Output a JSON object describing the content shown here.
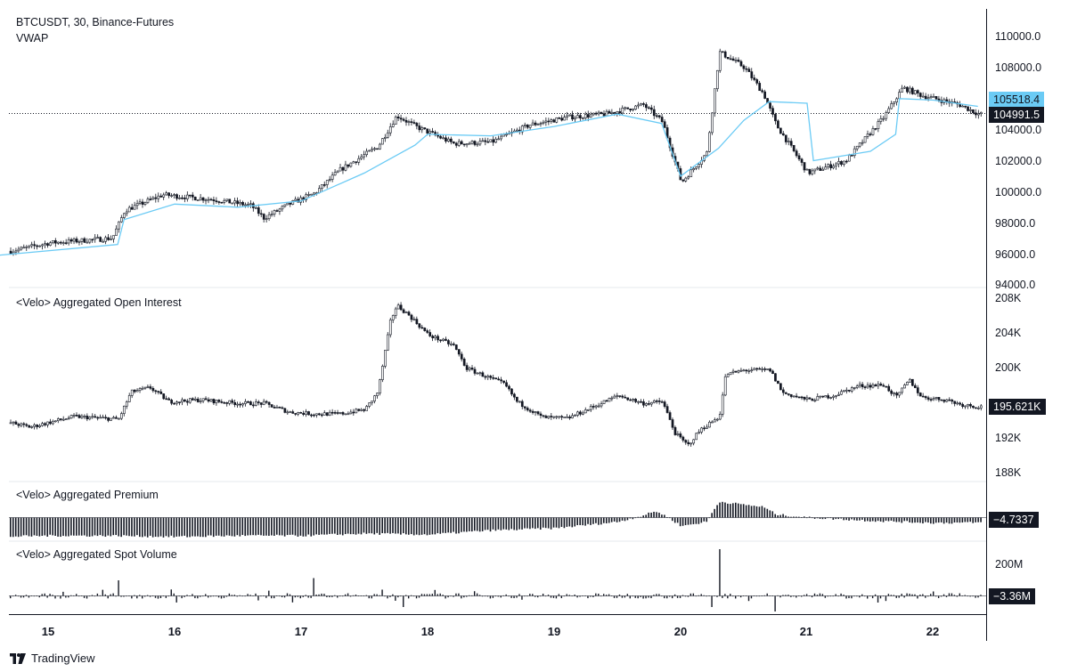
{
  "panes": {
    "price": {
      "title": "BTCUSDT, 30, Binance-Futures",
      "indicator": "VWAP",
      "axis_labels": [
        "110000.0",
        "108000.0",
        "104000.0",
        "102000.0",
        "100000.0",
        "98000.0",
        "96000.0",
        "94000.0"
      ],
      "last_price": "104991.5",
      "vwap_value": "105518.4"
    },
    "open_interest": {
      "title": "<Velo> Aggregated Open Interest",
      "axis_labels": [
        "208K",
        "204K",
        "200K",
        "192K",
        "188K"
      ],
      "last_value": "195.621K"
    },
    "premium": {
      "title": "<Velo> Aggregated Premium",
      "last_value": "−4.7337"
    },
    "spot_volume": {
      "title": "<Velo> Aggregated Spot Volume",
      "axis_labels": [
        "200M"
      ],
      "last_value": "−3.36M"
    }
  },
  "time_axis": [
    "15",
    "16",
    "17",
    "18",
    "19",
    "20",
    "21",
    "22"
  ],
  "brand": "TradingView",
  "colors": {
    "candle": "#131722",
    "vwap": "#6bcbf5",
    "axis_line": "#131722"
  },
  "chart_data": [
    {
      "type": "candlestick",
      "title": "BTCUSDT, 30, Binance-Futures",
      "ylim": [
        94000,
        111000
      ],
      "x": [
        "15",
        "16",
        "17",
        "18",
        "19",
        "20",
        "21",
        "22"
      ],
      "close_path": [
        [
          14.6,
          96000
        ],
        [
          15.0,
          96700
        ],
        [
          15.5,
          97000
        ],
        [
          15.6,
          98800
        ],
        [
          15.9,
          99800
        ],
        [
          16.3,
          99500
        ],
        [
          16.6,
          99100
        ],
        [
          16.7,
          98300
        ],
        [
          16.9,
          99200
        ],
        [
          17.1,
          99900
        ],
        [
          17.3,
          101400
        ],
        [
          17.6,
          102900
        ],
        [
          17.75,
          104900
        ],
        [
          17.9,
          104200
        ],
        [
          18.2,
          103100
        ],
        [
          18.5,
          103200
        ],
        [
          18.8,
          104300
        ],
        [
          19.1,
          104800
        ],
        [
          19.4,
          105000
        ],
        [
          19.7,
          105600
        ],
        [
          19.85,
          104500
        ],
        [
          20.0,
          100600
        ],
        [
          20.2,
          102500
        ],
        [
          20.3,
          109000
        ],
        [
          20.5,
          108000
        ],
        [
          20.65,
          106300
        ],
        [
          20.75,
          104300
        ],
        [
          21.0,
          101200
        ],
        [
          21.3,
          102000
        ],
        [
          21.6,
          104800
        ],
        [
          21.75,
          106700
        ],
        [
          21.9,
          106200
        ],
        [
          22.2,
          105600
        ],
        [
          22.35,
          105000
        ]
      ],
      "vwap_last": 105518.4,
      "last_close": 104991.5
    },
    {
      "type": "candlestick",
      "title": "<Velo> Aggregated Open Interest",
      "ylim": [
        188000,
        208000
      ],
      "x": [
        "15",
        "16",
        "17",
        "18",
        "19",
        "20",
        "21",
        "22"
      ],
      "close_path": [
        [
          14.6,
          194100
        ],
        [
          14.85,
          193300
        ],
        [
          15.2,
          194500
        ],
        [
          15.55,
          194200
        ],
        [
          15.65,
          197300
        ],
        [
          15.8,
          197800
        ],
        [
          15.95,
          196200
        ],
        [
          16.2,
          196400
        ],
        [
          16.5,
          196000
        ],
        [
          16.7,
          196000
        ],
        [
          16.9,
          195000
        ],
        [
          17.1,
          194800
        ],
        [
          17.3,
          194800
        ],
        [
          17.5,
          195300
        ],
        [
          17.6,
          197300
        ],
        [
          17.7,
          205400
        ],
        [
          17.75,
          207200
        ],
        [
          17.85,
          206000
        ],
        [
          18.0,
          203800
        ],
        [
          18.2,
          202600
        ],
        [
          18.3,
          200000
        ],
        [
          18.6,
          198200
        ],
        [
          18.7,
          196200
        ],
        [
          18.9,
          194400
        ],
        [
          19.1,
          194300
        ],
        [
          19.3,
          195600
        ],
        [
          19.5,
          196900
        ],
        [
          19.7,
          196000
        ],
        [
          19.85,
          196200
        ],
        [
          19.95,
          192600
        ],
        [
          20.05,
          191200
        ],
        [
          20.15,
          193000
        ],
        [
          20.3,
          194500
        ],
        [
          20.35,
          199300
        ],
        [
          20.5,
          199800
        ],
        [
          20.7,
          199800
        ],
        [
          20.8,
          197200
        ],
        [
          21.0,
          196400
        ],
        [
          21.2,
          196900
        ],
        [
          21.4,
          198000
        ],
        [
          21.6,
          198100
        ],
        [
          21.7,
          196700
        ],
        [
          21.8,
          198700
        ],
        [
          21.9,
          196700
        ],
        [
          22.1,
          196400
        ],
        [
          22.2,
          195900
        ],
        [
          22.35,
          195621
        ]
      ],
      "last_value": 195621
    },
    {
      "type": "bar",
      "title": "<Velo> Aggregated Premium",
      "x": [
        "15",
        "16",
        "17",
        "18",
        "19",
        "20",
        "21",
        "22"
      ],
      "value_path": [
        [
          14.6,
          -18
        ],
        [
          15.0,
          -17
        ],
        [
          15.5,
          -17
        ],
        [
          16.0,
          -18
        ],
        [
          16.5,
          -17
        ],
        [
          17.0,
          -17
        ],
        [
          17.5,
          -15
        ],
        [
          18.0,
          -16
        ],
        [
          18.5,
          -12
        ],
        [
          19.0,
          -10
        ],
        [
          19.5,
          -4
        ],
        [
          19.7,
          2
        ],
        [
          19.8,
          6
        ],
        [
          19.9,
          0
        ],
        [
          20.0,
          -8
        ],
        [
          20.2,
          -4
        ],
        [
          20.3,
          15
        ],
        [
          20.5,
          12
        ],
        [
          20.65,
          10
        ],
        [
          20.75,
          3
        ],
        [
          21.0,
          0
        ],
        [
          21.5,
          -3
        ],
        [
          22.0,
          -5
        ],
        [
          22.35,
          -4.7337
        ]
      ],
      "last_value": -4.7337
    },
    {
      "type": "bar",
      "title": "<Velo> Aggregated Spot Volume",
      "x": [
        "15",
        "16",
        "17",
        "18",
        "19",
        "20",
        "21",
        "22"
      ],
      "yticks": [
        "200M"
      ],
      "spikes": [
        [
          15.55,
          70
        ],
        [
          17.1,
          80
        ],
        [
          20.3,
          210
        ],
        [
          20.25,
          -50
        ],
        [
          20.75,
          -70
        ],
        [
          17.8,
          -50
        ]
      ],
      "last_value": -3360000
    }
  ]
}
